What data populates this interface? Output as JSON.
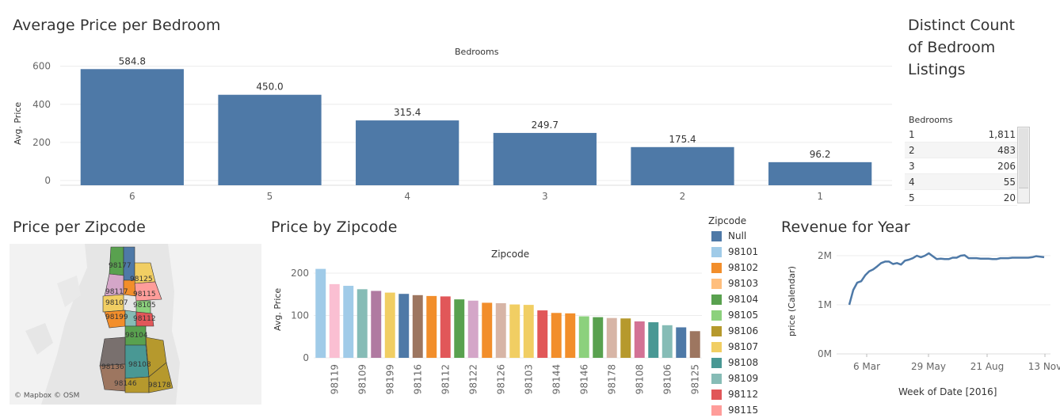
{
  "bedroom_chart": {
    "title": "Average Price per Bedroom",
    "header": "Bedrooms",
    "ylabel": "Avg. Price",
    "color": "#4e79a7"
  },
  "count_panel": {
    "title": "Distinct Count of Bedroom Listings",
    "column": "Bedrooms",
    "rows": [
      {
        "k": "1",
        "v": "1,811"
      },
      {
        "k": "2",
        "v": "483"
      },
      {
        "k": "3",
        "v": "206"
      },
      {
        "k": "4",
        "v": "55"
      },
      {
        "k": "5",
        "v": "20"
      }
    ]
  },
  "map_panel": {
    "title": "Price per Zipcode",
    "attribution": "© Mapbox © OSM",
    "labels": [
      "98177",
      "98125",
      "98117",
      "98115",
      "98107",
      "98105",
      "98199",
      "98112",
      "98104",
      "98136",
      "98108",
      "98146",
      "98178"
    ]
  },
  "zip_chart": {
    "title": "Price by Zipcode",
    "header": "Zipcode",
    "ylabel": "Avg. Price"
  },
  "legend": {
    "title": "Zipcode",
    "items": [
      {
        "label": "Null",
        "color": "#4e79a7"
      },
      {
        "label": "98101",
        "color": "#a0cbe8"
      },
      {
        "label": "98102",
        "color": "#f28e2b"
      },
      {
        "label": "98103",
        "color": "#ffbe7d"
      },
      {
        "label": "98104",
        "color": "#59a14f"
      },
      {
        "label": "98105",
        "color": "#8cd17d"
      },
      {
        "label": "98106",
        "color": "#b6992d"
      },
      {
        "label": "98107",
        "color": "#f1ce63"
      },
      {
        "label": "98108",
        "color": "#499894"
      },
      {
        "label": "98109",
        "color": "#86bcb6"
      },
      {
        "label": "98112",
        "color": "#e15759"
      },
      {
        "label": "98115",
        "color": "#ff9d9a"
      }
    ]
  },
  "revenue_chart": {
    "title": "Revenue for Year",
    "ylabel": "price (Calendar)",
    "xlabel": "Week of Date [2016]",
    "color": "#4e79a7"
  },
  "chart_data": [
    {
      "type": "bar",
      "title": "Average Price per Bedroom",
      "xlabel": "Bedrooms",
      "ylabel": "Avg. Price",
      "categories": [
        "6",
        "5",
        "4",
        "3",
        "2",
        "1"
      ],
      "values": [
        584.8,
        450.0,
        315.4,
        249.7,
        175.4,
        96.2
      ],
      "value_labels": [
        "584.8",
        "450.0",
        "315.4",
        "249.7",
        "175.4",
        "96.2"
      ],
      "yticks": [
        "0",
        "200",
        "400",
        "600"
      ],
      "ylim": [
        0,
        640
      ],
      "grid": true
    },
    {
      "type": "bar",
      "title": "Price by Zipcode",
      "xlabel": "Zipcode",
      "ylabel": "Avg. Price",
      "categories": [
        "",
        "98119",
        "",
        "98109",
        "",
        "98199",
        "",
        "98116",
        "",
        "98112",
        "",
        "98122",
        "",
        "98126",
        "",
        "98103",
        "",
        "98144",
        "",
        "98146",
        "",
        "98178",
        "",
        "98108",
        "",
        "98106",
        "",
        "98125"
      ],
      "values": [
        210,
        174,
        170,
        162,
        158,
        154,
        151,
        148,
        146,
        145,
        138,
        135,
        130,
        129,
        126,
        125,
        112,
        106,
        105,
        98,
        96,
        94,
        93,
        86,
        84,
        77,
        72,
        63
      ],
      "colors": [
        "#a0cbe8",
        "#fabfd2",
        "#a0cbe8",
        "#86bcb6",
        "#b07aa1",
        "#f1ce63",
        "#4e79a7",
        "#9d7660",
        "#f28e2b",
        "#e15759",
        "#59a14f",
        "#d4a6c8",
        "#f28e2b",
        "#d7b5a6",
        "#f1ce63",
        "#f1ce63",
        "#e15759",
        "#f28e2b",
        "#f28e2b",
        "#8cd17d",
        "#59a14f",
        "#d7b5a6",
        "#b6992d",
        "#d37295",
        "#499894",
        "#86bcb6",
        "#4e79a7",
        "#9d7660"
      ],
      "yticks": [
        "0",
        "100",
        "200"
      ],
      "ylim": [
        0,
        228
      ],
      "legend_position": "right"
    },
    {
      "type": "line",
      "title": "Revenue for Year",
      "xlabel": "Week of Date [2016]",
      "ylabel": "price (Calendar)",
      "x_ticks": [
        "6 Mar",
        "29 May",
        "21 Aug",
        "13 Nov"
      ],
      "y_ticks": [
        "0M",
        "1M",
        "2M"
      ],
      "ylim": [
        0,
        2.1
      ],
      "x": [
        0,
        1,
        2,
        3,
        4,
        5,
        6,
        7,
        8,
        9,
        10,
        11,
        12,
        13,
        14,
        15,
        16,
        17,
        18,
        19,
        20,
        21,
        22,
        23,
        24,
        25,
        26,
        27,
        28,
        29,
        30,
        31,
        32,
        33,
        34,
        35,
        36,
        37,
        38,
        39,
        40,
        41,
        42,
        43,
        44,
        45,
        46,
        47,
        48,
        49
      ],
      "y": [
        1.0,
        1.3,
        1.45,
        1.48,
        1.6,
        1.68,
        1.72,
        1.78,
        1.85,
        1.88,
        1.88,
        1.83,
        1.85,
        1.82,
        1.9,
        1.92,
        1.95,
        2.0,
        1.97,
        2.0,
        2.05,
        1.99,
        1.93,
        1.94,
        1.93,
        1.93,
        1.96,
        1.96,
        2.0,
        2.01,
        1.95,
        1.95,
        1.95,
        1.94,
        1.94,
        1.94,
        1.93,
        1.93,
        1.95,
        1.95,
        1.95,
        1.96,
        1.96,
        1.96,
        1.96,
        1.96,
        1.97,
        1.99,
        1.98,
        1.97
      ]
    }
  ]
}
